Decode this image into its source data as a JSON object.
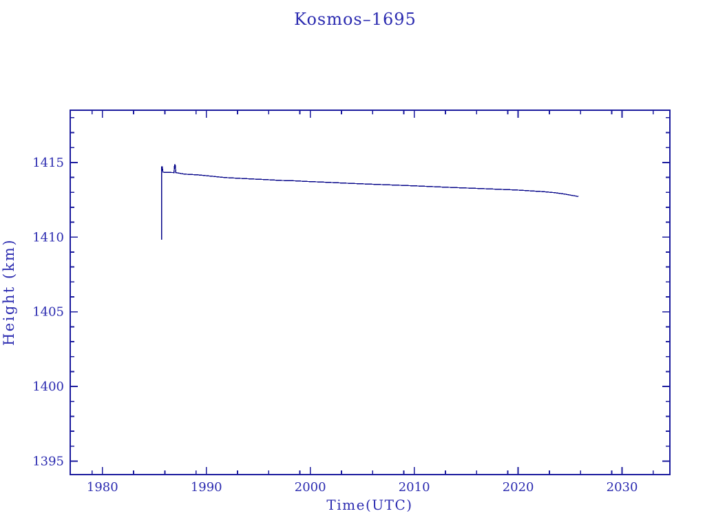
{
  "chart_data": {
    "type": "line",
    "title": "Kosmos–1695",
    "grid": false,
    "legend": "none",
    "colors": {
      "background": "#ffffff",
      "frame": "#1b1b9e",
      "text": "#2b2bb0",
      "line": "#050589"
    },
    "x_axis": {
      "label": "Time(UTC)",
      "range": [
        1976.9,
        2034.6
      ],
      "major_ticks": [
        1980,
        1990,
        2000,
        2010,
        2020,
        2030
      ],
      "major_labels": [
        "1980",
        "1990",
        "2000",
        "2010",
        "2020",
        "2030"
      ],
      "minor_ticks": [
        1979,
        1983,
        1986,
        1989,
        1993,
        1996,
        1999,
        2003,
        2006,
        2009,
        2013,
        2016,
        2019,
        2023,
        2026,
        2029,
        2033
      ]
    },
    "y_axis": {
      "label": "Height (km)",
      "range": [
        1394.1,
        1418.5
      ],
      "major_ticks": [
        1395,
        1400,
        1405,
        1410,
        1415
      ],
      "major_labels": [
        "1395",
        "1400",
        "1405",
        "1410",
        "1415"
      ],
      "minor_ticks": [
        1396,
        1397,
        1398,
        1399,
        1401,
        1402,
        1403,
        1404,
        1406,
        1407,
        1408,
        1409,
        1411,
        1412,
        1413,
        1414,
        1416,
        1417,
        1418
      ]
    },
    "series": [
      {
        "name": "orbital-height-km",
        "points": [
          [
            1985.7,
            1409.83
          ],
          [
            1985.7,
            1414.71
          ],
          [
            1985.76,
            1414.71
          ],
          [
            1985.82,
            1414.35
          ],
          [
            1986.88,
            1414.32
          ],
          [
            1986.94,
            1414.85
          ],
          [
            1987.0,
            1414.85
          ],
          [
            1987.06,
            1414.32
          ],
          [
            1987.9,
            1414.22
          ],
          [
            1989.2,
            1414.17
          ],
          [
            1990.5,
            1414.08
          ],
          [
            1991.8,
            1413.99
          ],
          [
            1993.2,
            1413.94
          ],
          [
            1994.5,
            1413.89
          ],
          [
            1995.8,
            1413.85
          ],
          [
            1997.1,
            1413.8
          ],
          [
            1998.5,
            1413.77
          ],
          [
            1999.9,
            1413.72
          ],
          [
            2001.1,
            1413.69
          ],
          [
            2003.2,
            1413.62
          ],
          [
            2006.5,
            1413.53
          ],
          [
            2009.9,
            1413.44
          ],
          [
            2013.2,
            1413.34
          ],
          [
            2016.5,
            1413.25
          ],
          [
            2019.8,
            1413.16
          ],
          [
            2022.4,
            1413.05
          ],
          [
            2023.5,
            1412.98
          ],
          [
            2024.5,
            1412.88
          ],
          [
            2025.3,
            1412.78
          ],
          [
            2025.8,
            1412.72
          ]
        ]
      }
    ]
  }
}
